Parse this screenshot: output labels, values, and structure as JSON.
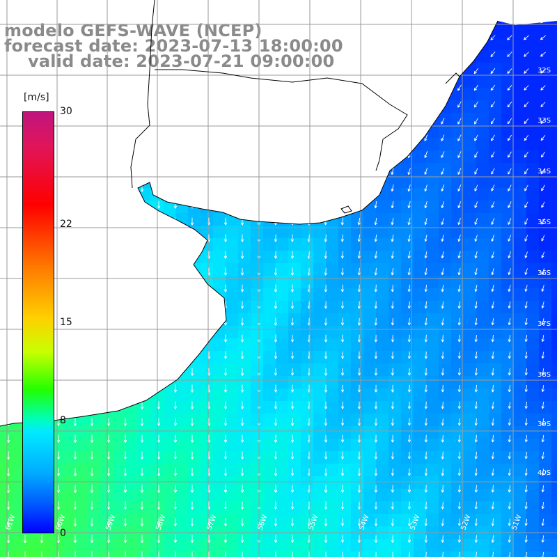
{
  "header": {
    "model_line": "modelo GEFS-WAVE (NCEP)",
    "forecast_line": "forecast date: 2023-07-13 18:00:00",
    "valid_line": "valid date: 2023-07-21 09:00:00"
  },
  "colorbar": {
    "unit": "[m/s]",
    "ticks": [
      "30",
      "22",
      "15",
      "8",
      "0"
    ],
    "tick_values": [
      30,
      22,
      15,
      8,
      0
    ],
    "min": 0,
    "max": 30,
    "colors": [
      "#0000ff",
      "#00aaff",
      "#00eaff",
      "#22ff00",
      "#ffd000",
      "#ff7a00",
      "#ff0000",
      "#c0157e"
    ]
  },
  "map": {
    "land_color": "#ffffff",
    "grid_color": "#9a9a9a",
    "lat_labels": [
      "32S",
      "33S",
      "34S",
      "35S",
      "36S",
      "37S",
      "38S",
      "39S",
      "40S"
    ],
    "lat_values": [
      -32,
      -33,
      -34,
      -35,
      -36,
      -37,
      -38,
      -39,
      -40
    ],
    "lon_labels": [
      "61W",
      "60W",
      "59W",
      "58W",
      "57W",
      "56W",
      "55W",
      "54W",
      "53W",
      "52W",
      "51W"
    ],
    "lon_values": [
      -61,
      -60,
      -59,
      -58,
      -57,
      -56,
      -55,
      -54,
      -53,
      -52,
      -51
    ],
    "arrow_color": "#ffffff"
  }
}
